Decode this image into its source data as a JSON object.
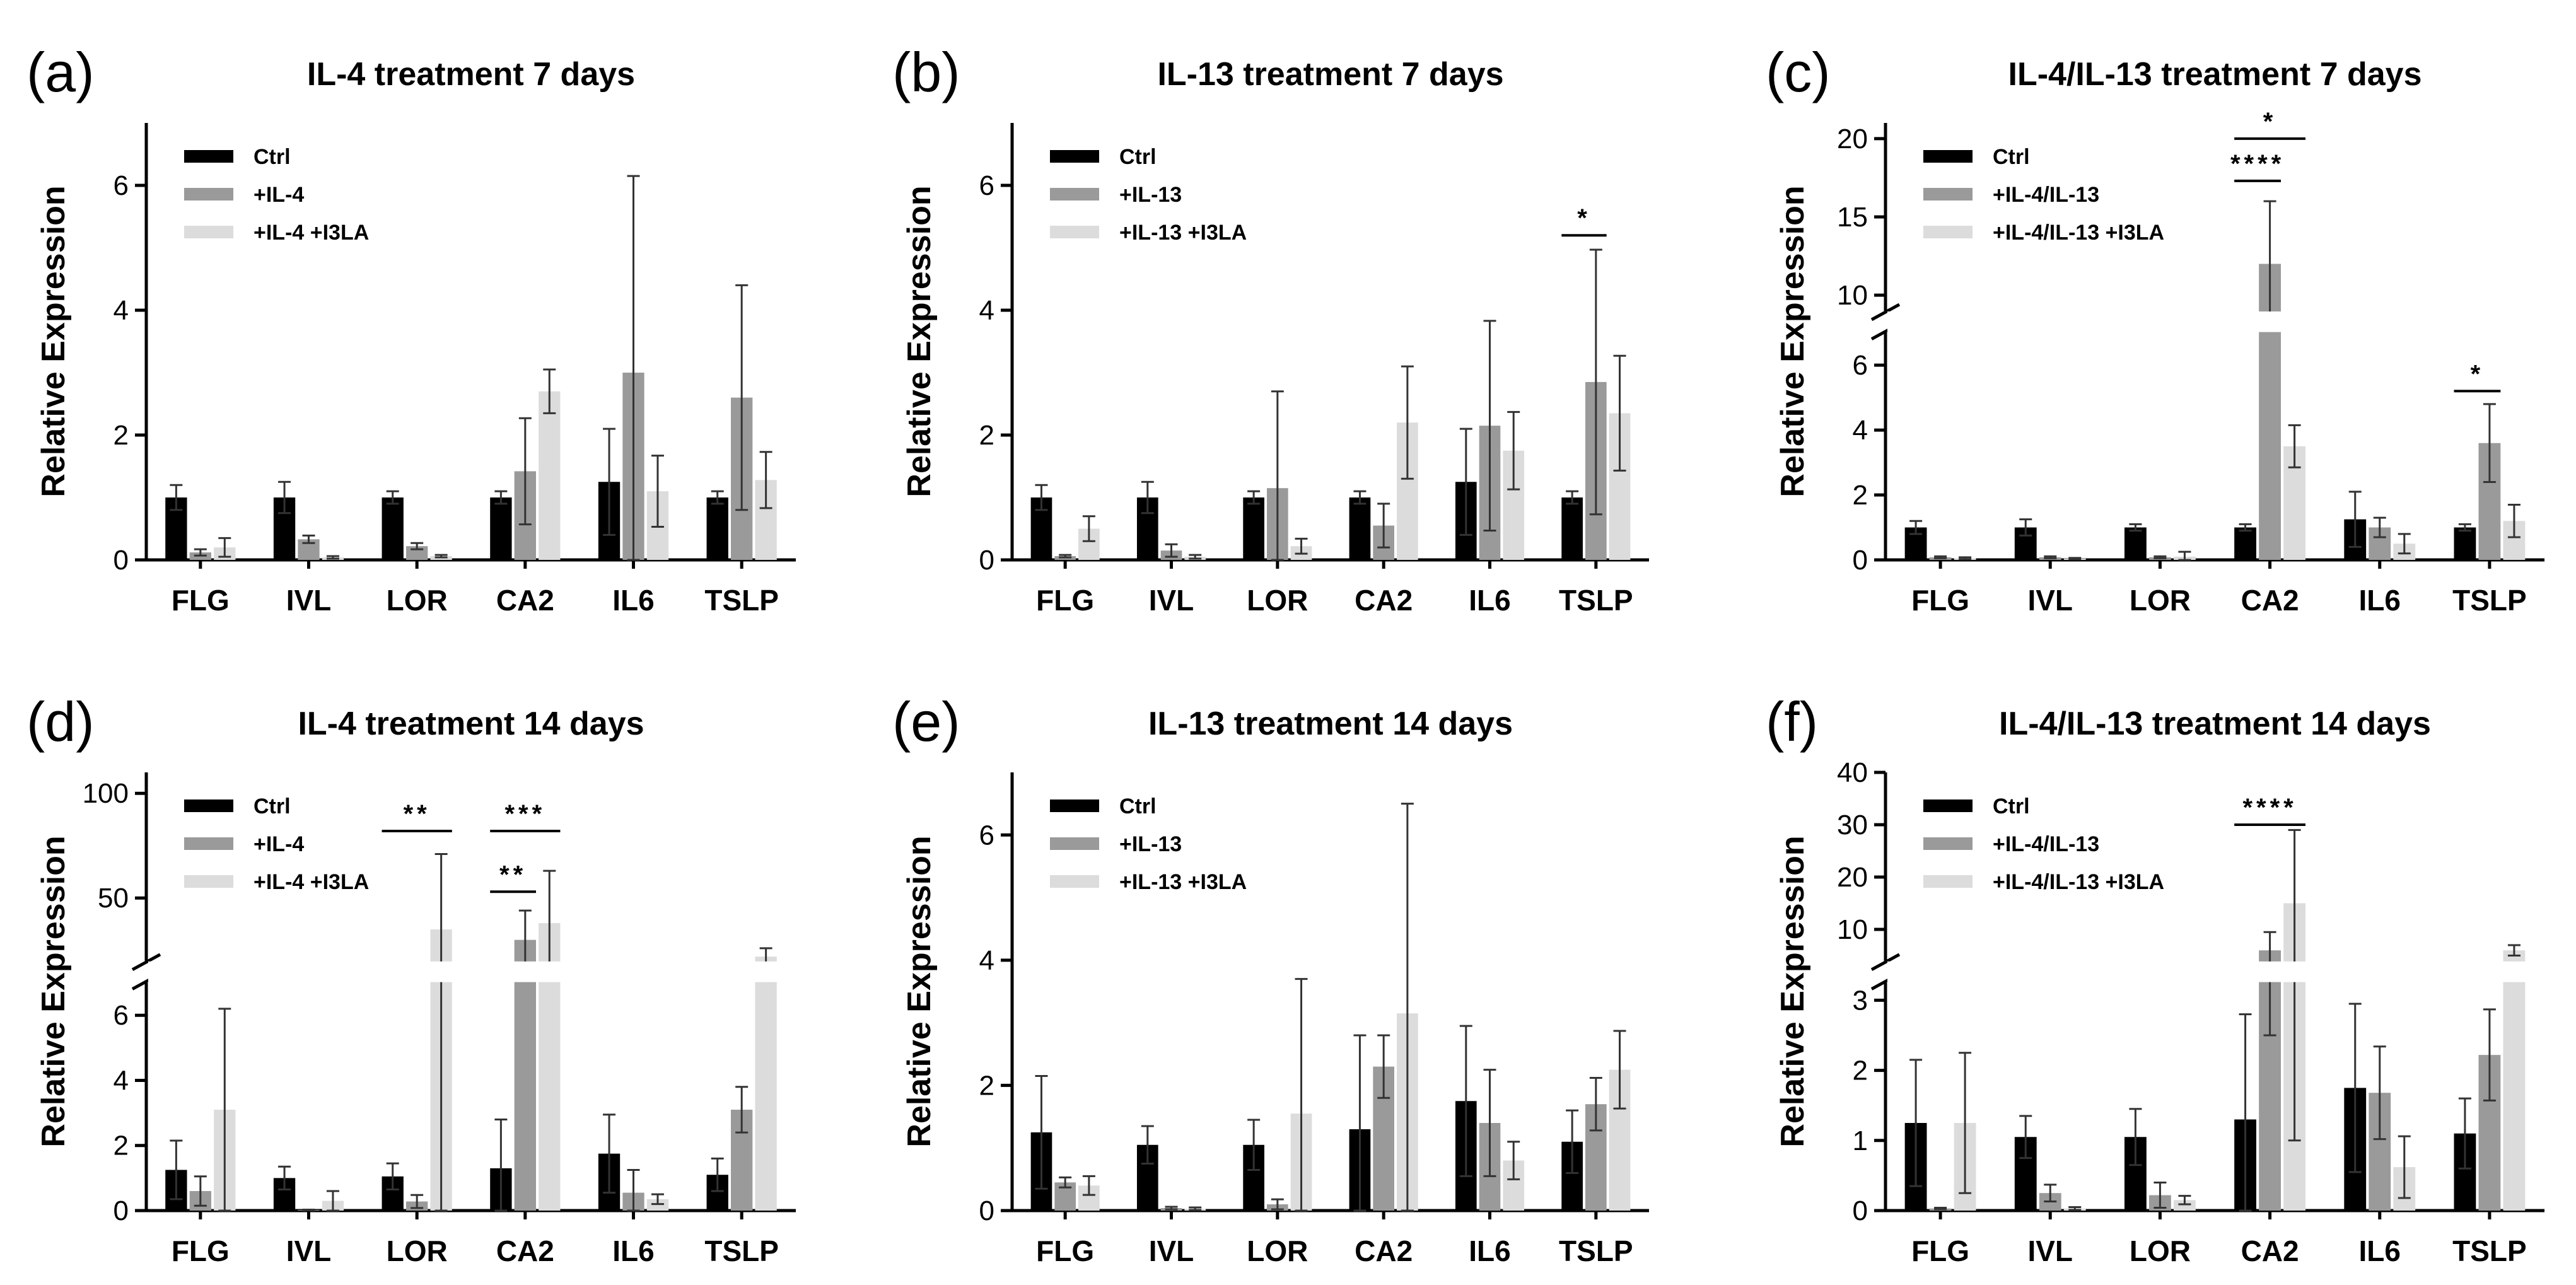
{
  "colors": {
    "Ctrl": "#000000",
    "Treatment": "#9a9a9a",
    "I3LA": "#dcdcdc"
  },
  "chart_data": [
    {
      "type": "bar",
      "label": "(a)",
      "title": "IL-4 treatment 7 days",
      "ylabel": "Relative Expression",
      "xlabel": "",
      "ylim": [
        0,
        7
      ],
      "yticks": [
        0,
        2,
        4,
        6
      ],
      "broken": false,
      "categories": [
        "FLG",
        "IVL",
        "LOR",
        "CA2",
        "IL6",
        "TSLP"
      ],
      "series": [
        {
          "name": "Ctrl",
          "values": [
            1.0,
            1.0,
            1.0,
            1.0,
            1.25,
            1.0
          ],
          "errors": [
            0.2,
            0.25,
            0.1,
            0.1,
            0.85,
            0.1
          ]
        },
        {
          "name": "+IL-4",
          "values": [
            0.12,
            0.33,
            0.22,
            1.42,
            3.0,
            2.6
          ],
          "errors": [
            0.05,
            0.06,
            0.05,
            0.85,
            3.15,
            1.8
          ]
        },
        {
          "name": "+IL-4 +I3LA",
          "values": [
            0.2,
            0.04,
            0.06,
            2.7,
            1.1,
            1.28
          ],
          "errors": [
            0.15,
            0.02,
            0.02,
            0.35,
            0.57,
            0.45
          ]
        }
      ],
      "significance": []
    },
    {
      "type": "bar",
      "label": "(b)",
      "title": "IL-13 treatment 7 days",
      "ylabel": "Relative Expression",
      "xlabel": "",
      "ylim": [
        0,
        7
      ],
      "yticks": [
        0,
        2,
        4,
        6
      ],
      "broken": false,
      "categories": [
        "FLG",
        "IVL",
        "LOR",
        "CA2",
        "IL6",
        "TSLP"
      ],
      "series": [
        {
          "name": "Ctrl",
          "values": [
            1.0,
            1.0,
            1.0,
            1.0,
            1.25,
            1.0
          ],
          "errors": [
            0.2,
            0.25,
            0.1,
            0.1,
            0.85,
            0.1
          ]
        },
        {
          "name": "+IL-13",
          "values": [
            0.06,
            0.15,
            1.15,
            0.55,
            2.15,
            2.85
          ],
          "errors": [
            0.02,
            0.1,
            1.55,
            0.35,
            1.68,
            2.12
          ]
        },
        {
          "name": "+IL-13 +I3LA",
          "values": [
            0.5,
            0.05,
            0.22,
            2.2,
            1.75,
            2.35
          ],
          "errors": [
            0.2,
            0.03,
            0.12,
            0.9,
            0.62,
            0.92
          ]
        }
      ],
      "significance": [
        {
          "text": "*",
          "category": "TSLP",
          "from": "Ctrl",
          "to": "+IL-13",
          "y": 5.2
        }
      ]
    },
    {
      "type": "bar",
      "label": "(c)",
      "title": "IL-4/IL-13 treatment 7 days",
      "ylabel": "Relative Expression",
      "xlabel": "",
      "broken": true,
      "lower": {
        "range": [
          0,
          7
        ],
        "ticks": [
          0,
          2,
          4,
          6
        ]
      },
      "upper": {
        "range": [
          9,
          21
        ],
        "ticks": [
          10,
          15,
          20
        ]
      },
      "categories": [
        "FLG",
        "IVL",
        "LOR",
        "CA2",
        "IL6",
        "TSLP"
      ],
      "series": [
        {
          "name": "Ctrl",
          "values": [
            1.0,
            1.0,
            1.0,
            1.0,
            1.25,
            1.0
          ],
          "errors": [
            0.2,
            0.25,
            0.1,
            0.1,
            0.85,
            0.1
          ]
        },
        {
          "name": "+IL-4/IL-13",
          "values": [
            0.08,
            0.08,
            0.08,
            12.0,
            1.0,
            3.6
          ],
          "errors": [
            0.03,
            0.03,
            0.03,
            4.0,
            0.3,
            1.2
          ]
        },
        {
          "name": "+IL-4/IL-13 +I3LA",
          "values": [
            0.05,
            0.04,
            0.1,
            3.5,
            0.5,
            1.2
          ],
          "errors": [
            0.03,
            0.02,
            0.15,
            0.65,
            0.3,
            0.5
          ]
        }
      ],
      "significance": [
        {
          "text": "****",
          "category": "CA2",
          "from": "Ctrl",
          "to": "+IL-4/IL-13",
          "y": 17.3
        },
        {
          "text": "*",
          "category": "CA2",
          "from": "Ctrl",
          "to": "+IL-4/IL-13 +I3LA",
          "y": 20.0
        },
        {
          "text": "*",
          "category": "TSLP",
          "from": "Ctrl",
          "to": "+IL-4/IL-13",
          "y": 5.2
        }
      ]
    },
    {
      "type": "bar",
      "label": "(d)",
      "title": "IL-4 treatment 14 days",
      "ylabel": "Relative Expression",
      "xlabel": "",
      "broken": true,
      "lower": {
        "range": [
          0,
          7
        ],
        "ticks": [
          0,
          2,
          4,
          6
        ]
      },
      "upper": {
        "range": [
          20,
          110
        ],
        "ticks": [
          50,
          100
        ]
      },
      "categories": [
        "FLG",
        "IVL",
        "LOR",
        "CA2",
        "IL6",
        "TSLP"
      ],
      "series": [
        {
          "name": "Ctrl",
          "values": [
            1.25,
            1.0,
            1.05,
            1.3,
            1.75,
            1.1
          ],
          "errors": [
            0.9,
            0.35,
            0.4,
            1.5,
            1.2,
            0.5
          ]
        },
        {
          "name": "+IL-4",
          "values": [
            0.6,
            0.02,
            0.28,
            30.0,
            0.55,
            3.1
          ],
          "errors": [
            0.45,
            0.01,
            0.2,
            14.0,
            0.7,
            0.7
          ]
        },
        {
          "name": "+IL-4 +I3LA",
          "values": [
            3.1,
            0.3,
            35.0,
            38.0,
            0.35,
            22.0
          ],
          "errors": [
            3.1,
            0.3,
            36.0,
            25.0,
            0.15,
            4.0
          ]
        }
      ],
      "significance": [
        {
          "text": "**",
          "category": "LOR",
          "from": "Ctrl",
          "to": "+IL-4 +I3LA",
          "y": 82
        },
        {
          "text": "***",
          "category": "CA2",
          "from": "Ctrl",
          "to": "+IL-4 +I3LA",
          "y": 82
        },
        {
          "text": "**",
          "category": "CA2",
          "from": "Ctrl",
          "to": "+IL-4",
          "y": 53
        }
      ]
    },
    {
      "type": "bar",
      "label": "(e)",
      "title": "IL-13 treatment 14 days",
      "ylabel": "Relative Expression",
      "xlabel": "",
      "ylim": [
        0,
        7
      ],
      "yticks": [
        0,
        2,
        4,
        6
      ],
      "broken": false,
      "categories": [
        "FLG",
        "IVL",
        "LOR",
        "CA2",
        "IL6",
        "TSLP"
      ],
      "series": [
        {
          "name": "Ctrl",
          "values": [
            1.25,
            1.05,
            1.05,
            1.3,
            1.75,
            1.1
          ],
          "errors": [
            0.9,
            0.3,
            0.4,
            1.5,
            1.2,
            0.5
          ]
        },
        {
          "name": "+IL-13",
          "values": [
            0.45,
            0.04,
            0.1,
            2.3,
            1.4,
            1.7
          ],
          "errors": [
            0.08,
            0.02,
            0.08,
            0.5,
            0.85,
            0.42
          ]
        },
        {
          "name": "+IL-13 +I3LA",
          "values": [
            0.4,
            0.03,
            1.55,
            3.15,
            0.8,
            2.25
          ],
          "errors": [
            0.15,
            0.02,
            2.15,
            3.35,
            0.3,
            0.62
          ]
        }
      ],
      "significance": []
    },
    {
      "type": "bar",
      "label": "(f)",
      "title": "IL-4/IL-13 treatment 14 days",
      "ylabel": "Relative Expression",
      "xlabel": "",
      "broken": true,
      "lower": {
        "range": [
          0,
          3.25
        ],
        "ticks": [
          0,
          1,
          2,
          3
        ]
      },
      "upper": {
        "range": [
          4,
          40
        ],
        "ticks": [
          10,
          20,
          30,
          40
        ]
      },
      "categories": [
        "FLG",
        "IVL",
        "LOR",
        "CA2",
        "IL6",
        "TSLP"
      ],
      "series": [
        {
          "name": "Ctrl",
          "values": [
            1.25,
            1.05,
            1.05,
            1.3,
            1.75,
            1.1
          ],
          "errors": [
            0.9,
            0.3,
            0.4,
            1.5,
            1.2,
            0.5
          ]
        },
        {
          "name": "+IL-4/IL-13",
          "values": [
            0.03,
            0.25,
            0.22,
            6.0,
            1.68,
            2.22
          ],
          "errors": [
            0.01,
            0.12,
            0.18,
            3.5,
            0.66,
            0.65
          ]
        },
        {
          "name": "+IL-4/IL-13 +I3LA",
          "values": [
            1.25,
            0.03,
            0.15,
            15.0,
            0.62,
            6.0
          ],
          "errors": [
            1.0,
            0.02,
            0.06,
            14.0,
            0.44,
            1.0
          ]
        }
      ],
      "significance": [
        {
          "text": "****",
          "category": "CA2",
          "from": "Ctrl",
          "to": "+IL-4/IL-13 +I3LA",
          "y": 30
        }
      ]
    }
  ]
}
